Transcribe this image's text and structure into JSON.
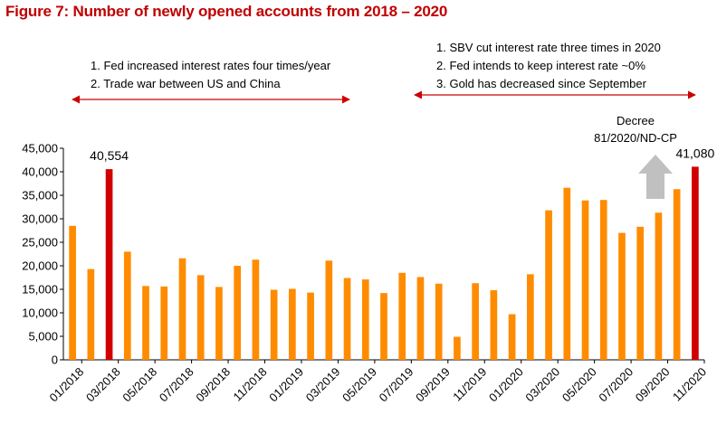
{
  "title": "Figure 7: Number of newly opened accounts from 2018 – 2020",
  "colors": {
    "bar": "#ff8c00",
    "highlight": "#d00000",
    "arrow": "#cc0000",
    "up_arrow": "#c0c0c0"
  },
  "annotations": {
    "left": [
      "1. Fed increased interest rates four times/year",
      "2. Trade war between US and China"
    ],
    "right": [
      "1. SBV cut interest rate three times in 2020",
      "2. Fed intends to keep interest rate ~0%",
      "3. Gold has decreased since September"
    ],
    "decree": [
      "Decree",
      "81/2020/ND-CP"
    ]
  },
  "chart_data": {
    "type": "bar",
    "title": "Figure 7: Number of newly opened accounts from 2018 – 2020",
    "xlabel": "",
    "ylabel": "",
    "ylim": [
      0,
      45000
    ],
    "yticks": [
      "0",
      "5,000",
      "10,000",
      "15,000",
      "20,000",
      "25,000",
      "30,000",
      "35,000",
      "40,000",
      "45,000"
    ],
    "categories": [
      "01/2018",
      "02/2018",
      "03/2018",
      "04/2018",
      "05/2018",
      "06/2018",
      "07/2018",
      "08/2018",
      "09/2018",
      "10/2018",
      "11/2018",
      "12/2018",
      "01/2019",
      "02/2019",
      "03/2019",
      "04/2019",
      "05/2019",
      "06/2019",
      "07/2019",
      "08/2019",
      "09/2019",
      "10/2019",
      "11/2019",
      "12/2019",
      "01/2020",
      "02/2020",
      "03/2020",
      "04/2020",
      "05/2020",
      "06/2020",
      "07/2020",
      "08/2020",
      "09/2020",
      "10/2020",
      "11/2020"
    ],
    "xtick_labels": [
      "01/2018",
      "03/2018",
      "05/2018",
      "07/2018",
      "09/2018",
      "11/2018",
      "01/2019",
      "03/2019",
      "05/2019",
      "07/2019",
      "09/2019",
      "11/2019",
      "01/2020",
      "03/2020",
      "05/2020",
      "07/2020",
      "09/2020",
      "11/2020"
    ],
    "values": [
      28500,
      19300,
      40554,
      23000,
      15700,
      15600,
      21600,
      18000,
      15500,
      20000,
      21300,
      14900,
      15100,
      14300,
      21100,
      17400,
      17100,
      14200,
      18500,
      17600,
      16200,
      4900,
      16300,
      14800,
      9700,
      18200,
      31800,
      36600,
      33900,
      34000,
      27000,
      28300,
      31300,
      36300,
      41080
    ],
    "highlight_indices": [
      2,
      34
    ],
    "data_labels": [
      {
        "index": 2,
        "text": "40,554"
      },
      {
        "index": 34,
        "text": "41,080"
      }
    ],
    "grid": false
  }
}
